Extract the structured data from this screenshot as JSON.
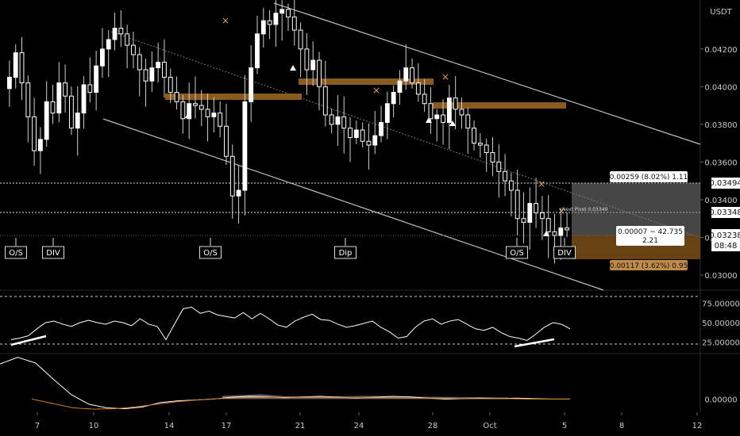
{
  "colors": {
    "background": "#000000",
    "candle_up": "#ffffff",
    "candle_down": "#000000",
    "channel": "#bdbdbd",
    "zone": "#8a5a1e",
    "marker_x": "#e0a050",
    "rsi_line": "#ffffff",
    "osc_fast": "#ffffff",
    "osc_slow": "#d07a20",
    "osc_hist": "#808080"
  },
  "price_axis": {
    "currency": "USDT",
    "ticks": [
      "0.04200",
      "0.04000",
      "0.03800",
      "0.03600",
      "0.03400",
      "0.03200",
      "0.03000"
    ],
    "current_price": "0.03238",
    "countdown": "08:48",
    "upper_level": "0.03494",
    "mid_level": "0.03348"
  },
  "rsi_axis": {
    "ticks": [
      "75.00000",
      "50.00000",
      "25.00000"
    ]
  },
  "osc_axis": {
    "ticks": [
      "0.00000"
    ]
  },
  "time_axis": {
    "ticks": [
      "7",
      "10",
      "14",
      "17",
      "21",
      "24",
      "28",
      "Oct",
      "5",
      "8",
      "12"
    ]
  },
  "signal_labels": [
    "O/S",
    "DIV",
    "O/S",
    "Dip",
    "O/S",
    "DIV"
  ],
  "measure": {
    "upper_text": "0.00259 (8.02%) 1.11",
    "mid_text_1": "0.00007 ~ 42.735",
    "mid_text_2": "2.21",
    "lower_text": "0.00117 (3.62%) 0.95",
    "pivot_text": "Next Pivot 0.03349"
  },
  "chart_data": {
    "type": "candlestick",
    "ylim": [
      0.0292,
      0.0446
    ],
    "price_series": [
      0.0405,
      0.0418,
      0.0402,
      0.0384,
      0.0366,
      0.0372,
      0.0392,
      0.0386,
      0.0402,
      0.0395,
      0.0378,
      0.0386,
      0.0401,
      0.0397,
      0.0411,
      0.042,
      0.0425,
      0.0431,
      0.0428,
      0.0422,
      0.0417,
      0.0409,
      0.0403,
      0.041,
      0.0413,
      0.0405,
      0.0397,
      0.0392,
      0.0383,
      0.0391,
      0.039,
      0.0388,
      0.0384,
      0.0386,
      0.0379,
      0.0363,
      0.0342,
      0.0345,
      0.0392,
      0.041,
      0.0428,
      0.0435,
      0.0433,
      0.0439,
      0.0441,
      0.0437,
      0.043,
      0.042,
      0.0409,
      0.0414,
      0.04,
      0.0385,
      0.038,
      0.0384,
      0.0378,
      0.0373,
      0.0377,
      0.0371,
      0.0369,
      0.0374,
      0.0381,
      0.0391,
      0.0397,
      0.0403,
      0.041,
      0.0402,
      0.0396,
      0.0391,
      0.0383,
      0.0385,
      0.0381,
      0.0394,
      0.0388,
      0.0385,
      0.0378,
      0.037,
      0.0369,
      0.0365,
      0.036,
      0.0355,
      0.035,
      0.0345,
      0.033,
      0.0328,
      0.0338,
      0.0333,
      0.033,
      0.0323,
      0.0321,
      0.0325,
      0.0324
    ],
    "rsi": [
      28,
      30,
      33,
      42,
      50,
      52,
      48,
      45,
      50,
      53,
      50,
      48,
      52,
      50,
      46,
      55,
      48,
      45,
      28,
      48,
      68,
      70,
      62,
      65,
      60,
      58,
      56,
      63,
      55,
      62,
      55,
      47,
      44,
      52,
      57,
      61,
      54,
      53,
      48,
      44,
      46,
      49,
      52,
      44,
      38,
      30,
      32,
      44,
      52,
      55,
      48,
      52,
      54,
      48,
      42,
      40,
      44,
      37,
      32,
      30,
      27,
      35,
      44,
      50,
      48,
      42
    ],
    "osc_fast": [
      0.8,
      0.95,
      0.82,
      0.45,
      0.1,
      -0.12,
      -0.2,
      -0.22,
      -0.18,
      -0.08,
      -0.04,
      -0.02,
      0.0,
      0.04,
      0.06,
      0.05,
      0.03,
      0.05,
      0.06,
      0.04,
      0.02,
      0.04,
      0.06,
      0.05,
      0.02,
      0.0,
      0.01,
      0.02,
      0.01,
      0.02,
      0.01,
      0.0,
      0.0
    ],
    "osc_slow": [
      0.0,
      -0.1,
      -0.2,
      -0.23,
      -0.22,
      -0.18,
      -0.12,
      -0.06,
      -0.02,
      0.01,
      0.03,
      0.04,
      0.04,
      0.04,
      0.04,
      0.03,
      0.03,
      0.03,
      0.02,
      0.02,
      0.02,
      0.01,
      0.01,
      0.01,
      0.0,
      0.0,
      0.0
    ],
    "rsi_ylim": [
      10,
      90
    ],
    "osc_ylim": [
      -0.3,
      1.0
    ]
  }
}
